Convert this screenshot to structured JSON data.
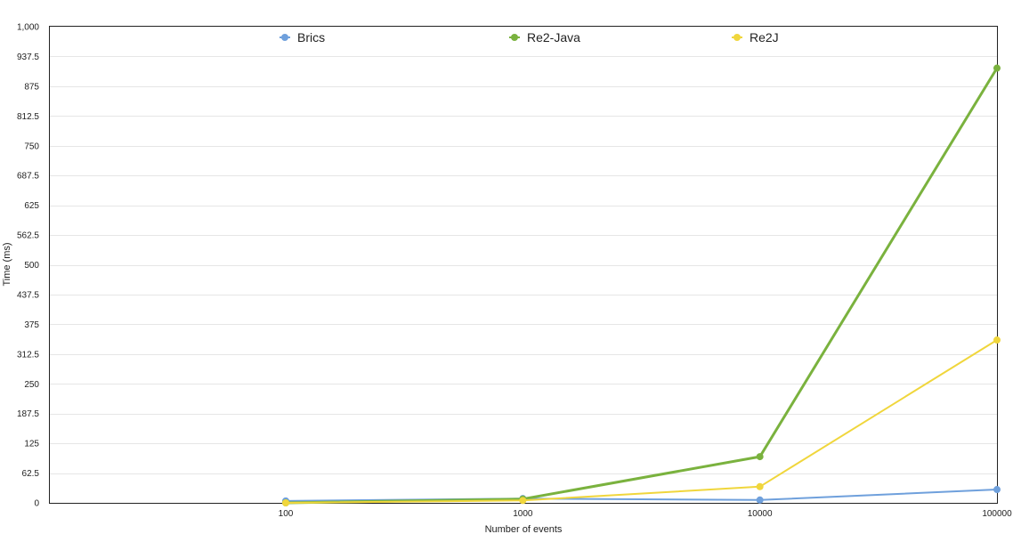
{
  "chart_data": {
    "type": "line",
    "title": "",
    "xlabel": "Number of events",
    "ylabel": "Time (ms)",
    "categories": [
      "100",
      "1000",
      "10000",
      "100000"
    ],
    "ylim": [
      0,
      1000
    ],
    "yticks": [
      "0",
      "62.5",
      "125",
      "187.5",
      "250",
      "312.5",
      "375",
      "437.5",
      "500",
      "562.5",
      "625",
      "687.5",
      "750",
      "812.5",
      "875",
      "937.5",
      "1,000"
    ],
    "ytick_values": [
      0,
      62.5,
      125,
      187.5,
      250,
      312.5,
      375,
      437.5,
      500,
      562.5,
      625,
      687.5,
      750,
      812.5,
      875,
      937.5,
      1000
    ],
    "grid": true,
    "legend_position": "top",
    "series": [
      {
        "name": "Brics",
        "color": "#6fa0dc",
        "values": [
          4,
          9,
          6,
          28
        ]
      },
      {
        "name": "Re2-Java",
        "color": "#7ab23e",
        "values": [
          0,
          8,
          97,
          913
        ]
      },
      {
        "name": "Re2J",
        "color": "#f0d63c",
        "values": [
          0,
          5,
          34,
          342
        ]
      }
    ]
  }
}
